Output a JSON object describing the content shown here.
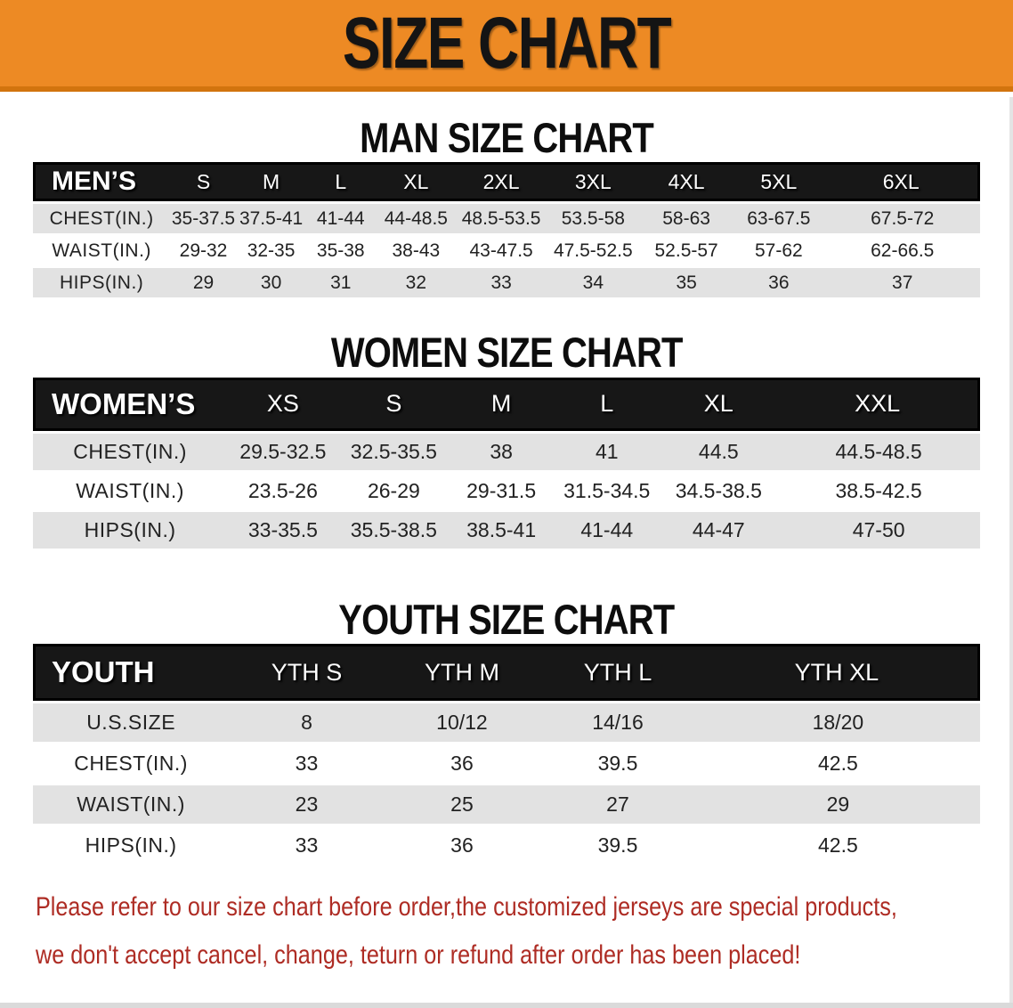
{
  "banner": {
    "title": "SIZE CHART"
  },
  "colors": {
    "banner_bg": "#ED8A24",
    "banner_edge": "#D2740E",
    "header_bar": "#171717",
    "row_stripe": "#E2E2E2",
    "notice_text": "#AE2C24"
  },
  "sections": [
    {
      "heading": "MAN SIZE CHART",
      "header": {
        "label": "MEN’S",
        "sizes": [
          "S",
          "M",
          "L",
          "XL",
          "2XL",
          "3XL",
          "4XL",
          "5XL",
          "6XL"
        ]
      },
      "rows": [
        {
          "label": "CHEST(IN.)",
          "values": [
            "35-37.5",
            "37.5-41",
            "41-44",
            "44-48.5",
            "48.5-53.5",
            "53.5-58",
            "58-63",
            "63-67.5",
            "67.5-72"
          ]
        },
        {
          "label": "WAIST(IN.)",
          "values": [
            "29-32",
            "32-35",
            "35-38",
            "38-43",
            "43-47.5",
            "47.5-52.5",
            "52.5-57",
            "57-62",
            "62-66.5"
          ]
        },
        {
          "label": "HIPS(IN.)",
          "values": [
            "29",
            "30",
            "31",
            "32",
            "33",
            "34",
            "35",
            "36",
            "37"
          ]
        }
      ]
    },
    {
      "heading": "WOMEN SIZE CHART",
      "header": {
        "label": "WOMEN’S",
        "sizes": [
          "XS",
          "S",
          "M",
          "L",
          "XL",
          "XXL"
        ]
      },
      "rows": [
        {
          "label": "CHEST(IN.)",
          "values": [
            "29.5-32.5",
            "32.5-35.5",
            "38",
            "41",
            "44.5",
            "44.5-48.5"
          ]
        },
        {
          "label": "WAIST(IN.)",
          "values": [
            "23.5-26",
            "26-29",
            "29-31.5",
            "31.5-34.5",
            "34.5-38.5",
            "38.5-42.5"
          ]
        },
        {
          "label": "HIPS(IN.)",
          "values": [
            "33-35.5",
            "35.5-38.5",
            "38.5-41",
            "41-44",
            "44-47",
            "47-50"
          ]
        }
      ]
    },
    {
      "heading": "YOUTH SIZE CHART",
      "header": {
        "label": "YOUTH",
        "sizes": [
          "YTH S",
          "YTH M",
          "YTH L",
          "YTH XL"
        ]
      },
      "rows": [
        {
          "label": "U.S.SIZE",
          "values": [
            "8",
            "10/12",
            "14/16",
            "18/20"
          ]
        },
        {
          "label": "CHEST(IN.)",
          "values": [
            "33",
            "36",
            "39.5",
            "42.5"
          ]
        },
        {
          "label": "WAIST(IN.)",
          "values": [
            "23",
            "25",
            "27",
            "29"
          ]
        },
        {
          "label": "HIPS(IN.)",
          "values": [
            "33",
            "36",
            "39.5",
            "42.5"
          ]
        }
      ]
    }
  ],
  "footer": {
    "line1": "Please refer to our size chart before order,the customized jerseys are special products,",
    "line2": "we don't accept cancel, change, teturn or refund after order has been placed!"
  }
}
